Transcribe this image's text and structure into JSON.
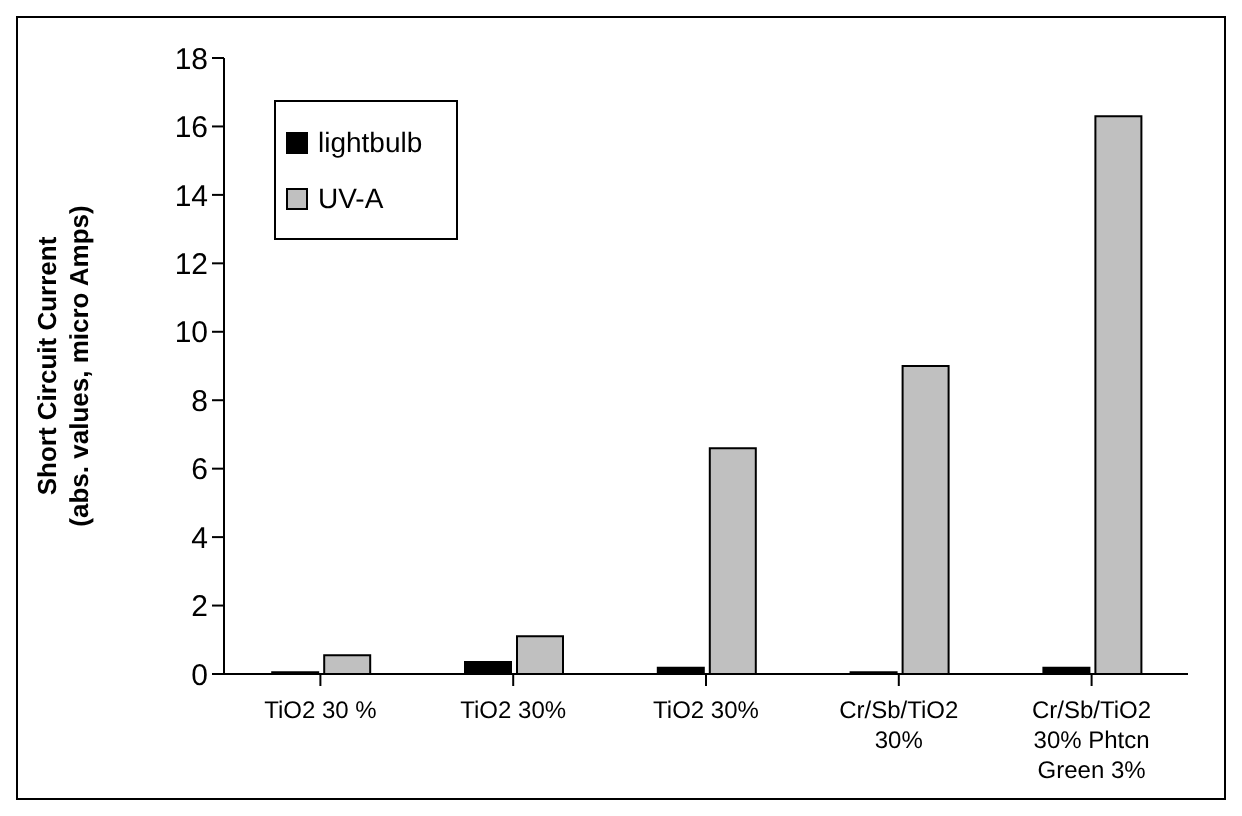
{
  "chart_data": {
    "type": "bar",
    "ylabel": "Short Circuit Current\n(abs. values, micro Amps)",
    "categories": [
      "TiO2 30 %",
      "TiO2 30%",
      "TiO2 30%",
      "Cr/Sb/TiO2 30%",
      "Cr/Sb/TiO2 30% Phtcn Green 3%"
    ],
    "series": [
      {
        "name": "lightbulb",
        "color": "#000000",
        "values": [
          0.05,
          0.35,
          0.18,
          0.05,
          0.18
        ]
      },
      {
        "name": "UV-A",
        "color": "#c0c0c0",
        "values": [
          0.55,
          1.1,
          6.6,
          9.0,
          16.3
        ]
      }
    ],
    "ylim": [
      0,
      18
    ],
    "yticks": [
      0,
      2,
      4,
      6,
      8,
      10,
      12,
      14,
      16,
      18
    ],
    "grid": false,
    "legend": "top left"
  }
}
